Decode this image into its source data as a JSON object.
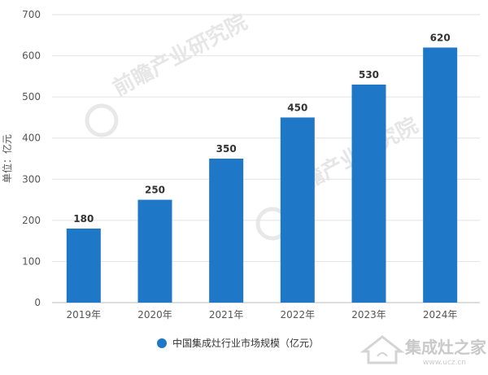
{
  "chart_data": {
    "type": "bar",
    "categories": [
      "2019年",
      "2020年",
      "2021年",
      "2022年",
      "2023年",
      "2024年"
    ],
    "values": [
      180,
      250,
      350,
      450,
      530,
      620
    ],
    "data_labels": [
      "180",
      "250",
      "350",
      "450",
      "530",
      "620"
    ],
    "ylabel": "单位：亿元",
    "yticks": [
      "0",
      "100",
      "200",
      "300",
      "400",
      "500",
      "600",
      "700"
    ],
    "ylim": [
      0,
      700
    ],
    "grid": true,
    "legend": {
      "position": "bottom",
      "entries": [
        "中国集成灶行业市场规模（亿元）"
      ]
    },
    "bar_color": "#1f77c8"
  },
  "watermark": {
    "brand": "集成灶之家",
    "url": "www.ucz.cn"
  }
}
